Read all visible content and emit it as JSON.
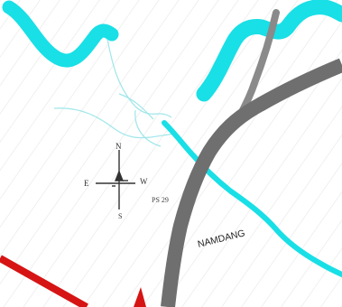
{
  "map": {
    "compass": {
      "north": "N",
      "south": "S",
      "east": "E",
      "west": "W"
    },
    "labels": {
      "survey_point": "PS 29",
      "road_name": "NAMDANG"
    },
    "colors": {
      "background": "#ffffff",
      "hatch": "#e6e6e6",
      "river": "#19dfe6",
      "river_thin": "#7fe9ee",
      "road": "#6f6f6f",
      "road_side": "#8a8a8a",
      "boundary": "#d61414",
      "compass": "#333333"
    }
  }
}
